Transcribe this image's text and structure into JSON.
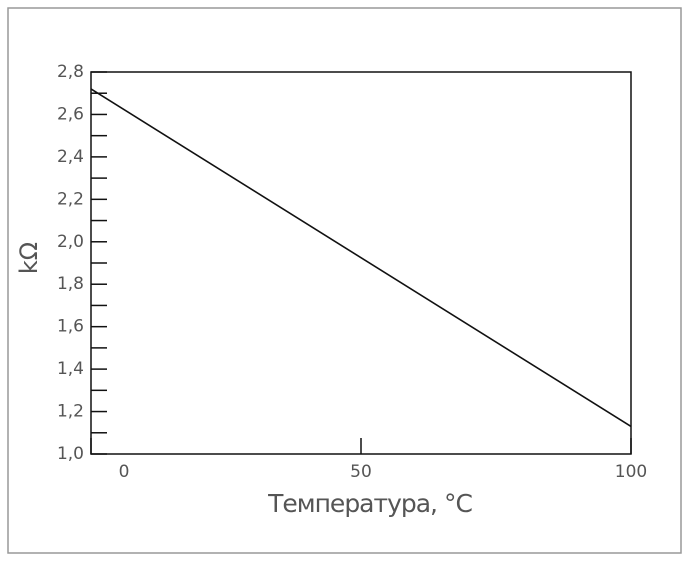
{
  "chart_data": {
    "type": "line",
    "x": [
      0,
      100
    ],
    "values": [
      2.72,
      1.13
    ],
    "color": "#111111",
    "xlabel": "Температура, °C",
    "ylabel": "kΩ",
    "xlim": [
      0,
      100
    ],
    "xticks": [
      0,
      50,
      100
    ],
    "ylim": [
      1.0,
      2.8
    ],
    "yticks": [
      {
        "value": 1.0,
        "label": "1,0"
      },
      {
        "value": 1.2,
        "label": "1,2"
      },
      {
        "value": 1.4,
        "label": "1,4"
      },
      {
        "value": 1.6,
        "label": "1,6"
      },
      {
        "value": 1.8,
        "label": "1,8"
      },
      {
        "value": 2.0,
        "label": "2,0"
      },
      {
        "value": 2.2,
        "label": "2,2"
      },
      {
        "value": 2.4,
        "label": "2,4"
      },
      {
        "value": 2.6,
        "label": "2,6"
      },
      {
        "value": 2.8,
        "label": "2,8"
      }
    ],
    "yminor_ticks": [
      1.1,
      1.3,
      1.5,
      1.7,
      1.9,
      2.1,
      2.3,
      2.5,
      2.7
    ]
  }
}
